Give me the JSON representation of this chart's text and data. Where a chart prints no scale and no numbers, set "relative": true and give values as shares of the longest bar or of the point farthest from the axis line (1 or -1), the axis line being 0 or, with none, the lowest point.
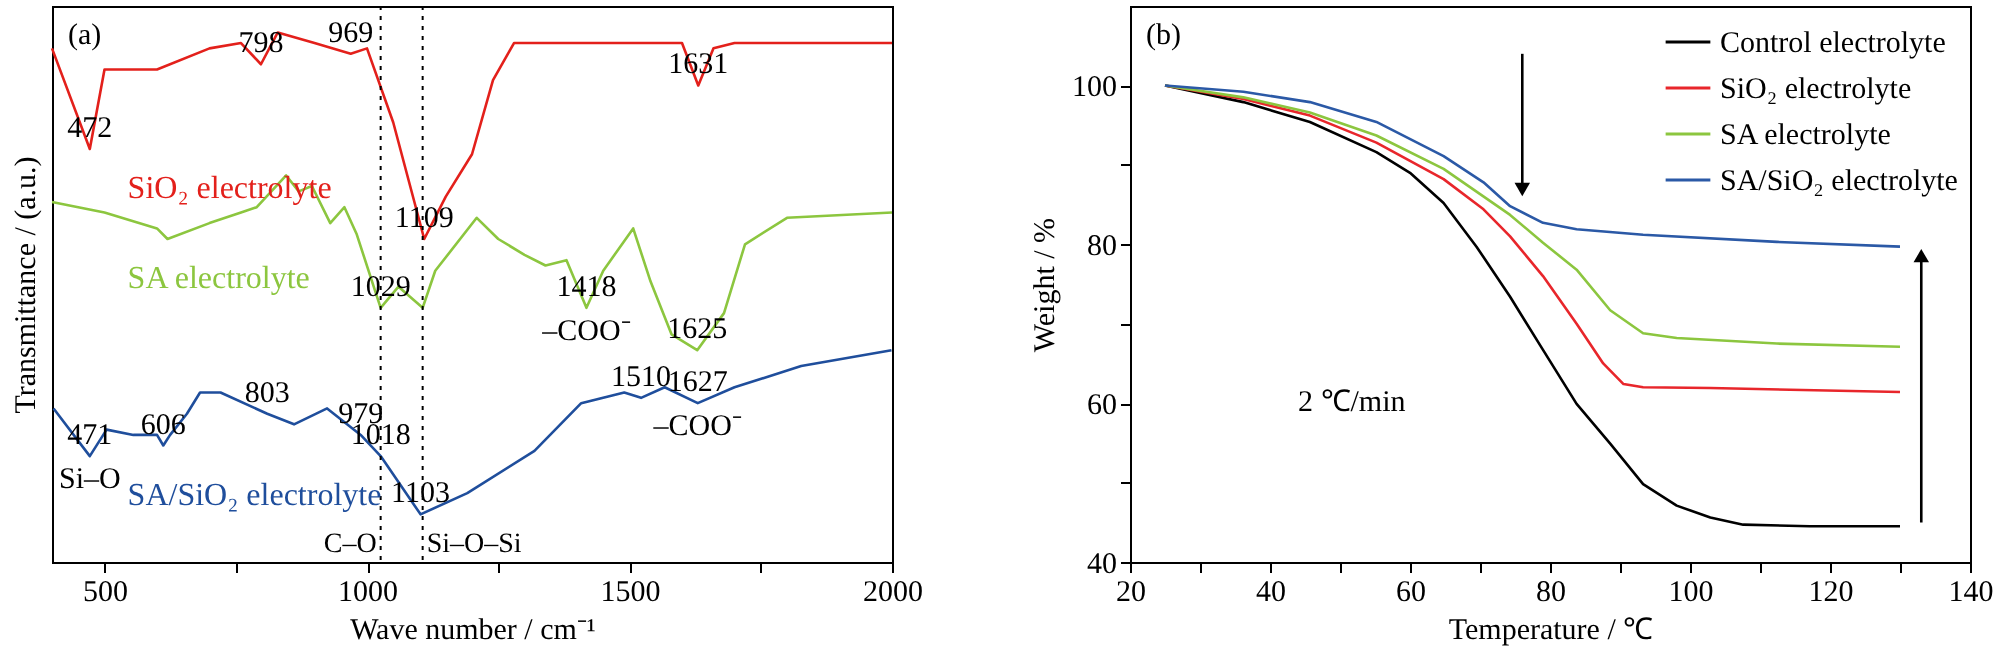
{
  "chart_data": [
    {
      "type": "line",
      "relative": true,
      "xlabel": "Wave number / cm⁻¹",
      "ylabel": "Transmittance / (a.u.)",
      "xlim": [
        400,
        2000
      ],
      "xticks": [
        500,
        {
          "value": 750,
          "label": null
        },
        1000,
        {
          "value": 1250,
          "label": null
        },
        1500,
        {
          "value": 1750,
          "label": null
        },
        2000
      ],
      "legend": false,
      "series": [
        {
          "name": "SiO₂ electrolyte",
          "color": "#e3201b",
          "x": [
            400,
            472,
            500,
            600,
            700,
            760,
            798,
            830,
            900,
            969,
            1000,
            1050,
            1109,
            1150,
            1200,
            1240,
            1280,
            1350,
            1600,
            1631,
            1660,
            1700,
            2000
          ],
          "values": [
            0.97,
            0.78,
            0.93,
            0.93,
            0.97,
            0.98,
            0.94,
            1.0,
            0.98,
            0.96,
            0.97,
            0.83,
            0.61,
            0.69,
            0.77,
            0.91,
            0.98,
            0.98,
            0.98,
            0.9,
            0.97,
            0.98,
            0.98
          ]
        },
        {
          "name": "SA electrolyte",
          "color": "#8cc63f",
          "x": [
            400,
            500,
            600,
            620,
            700,
            760,
            790,
            846,
            870,
            895,
            930,
            957,
            980,
            1026,
            1060,
            1106,
            1130,
            1209,
            1250,
            1300,
            1340,
            1380,
            1418,
            1450,
            1507,
            1540,
            1580,
            1629,
            1680,
            1720,
            1800,
            2000
          ],
          "values": [
            0.68,
            0.66,
            0.63,
            0.61,
            0.64,
            0.66,
            0.67,
            0.73,
            0.7,
            0.71,
            0.64,
            0.67,
            0.62,
            0.48,
            0.52,
            0.48,
            0.55,
            0.65,
            0.61,
            0.58,
            0.56,
            0.57,
            0.48,
            0.55,
            0.63,
            0.53,
            0.43,
            0.4,
            0.47,
            0.6,
            0.65,
            0.66
          ]
        },
        {
          "name": "SA/SiO₂ electrolyte",
          "color": "#1f4e9c",
          "x": [
            403,
            472,
            504,
            555,
            600,
            612,
            625,
            657,
            682,
            721,
            810,
            861,
            924,
            988,
            1026,
            1102,
            1191,
            1319,
            1408,
            1490,
            1522,
            1567,
            1630,
            1700,
            1827,
            1999
          ],
          "values": [
            0.29,
            0.2,
            0.25,
            0.24,
            0.24,
            0.22,
            0.24,
            0.28,
            0.32,
            0.32,
            0.28,
            0.26,
            0.29,
            0.24,
            0.2,
            0.09,
            0.13,
            0.21,
            0.3,
            0.32,
            0.31,
            0.33,
            0.3,
            0.33,
            0.37,
            0.4
          ]
        }
      ],
      "ref_lines": [
        {
          "axis": "x",
          "value": 1026,
          "label": "C–O",
          "line_style": "dotted",
          "color": "#000000"
        },
        {
          "axis": "x",
          "value": 1106,
          "label": "Si–O–Si",
          "line_style": "dotted",
          "color": "#000000"
        }
      ],
      "annotations": [
        "(a)",
        {
          "text": "472",
          "x": 472,
          "y": 0.78
        },
        {
          "text": "798",
          "x": 798,
          "y": 0.94
        },
        {
          "text": "969",
          "x": 969,
          "y": 0.96
        },
        {
          "text": "1109",
          "x": 1109,
          "y": 0.61
        },
        {
          "text": "1631",
          "x": 1631,
          "y": 0.9
        },
        {
          "text": "1029",
          "x": 1026,
          "y": 0.48
        },
        {
          "text": "1418",
          "x": 1418,
          "y": 0.48
        },
        {
          "text": "–COO⁻",
          "x": 1418,
          "y": 0.48
        },
        {
          "text": "1625",
          "x": 1629,
          "y": 0.4
        },
        {
          "text": "471",
          "x": 472,
          "y": 0.2
        },
        {
          "text": "606",
          "x": 612,
          "y": 0.22
        },
        {
          "text": "803",
          "x": 810,
          "y": 0.28
        },
        {
          "text": "979",
          "x": 988,
          "y": 0.24
        },
        {
          "text": "1018",
          "x": 1026,
          "y": 0.2
        },
        {
          "text": "1103",
          "x": 1102,
          "y": 0.09
        },
        {
          "text": "1510",
          "x": 1522,
          "y": 0.31
        },
        {
          "text": "1627",
          "x": 1630,
          "y": 0.3
        },
        {
          "text": "–COO⁻",
          "x": 1630,
          "y": 0.3
        },
        {
          "text": "Si–O",
          "x": 472,
          "y": 0.2
        }
      ]
    },
    {
      "type": "line",
      "xlabel": "Temperature / ℃",
      "ylabel": "Weight / %",
      "xlim": [
        20,
        140
      ],
      "xticks": [
        20,
        {
          "value": 30,
          "label": null
        },
        40,
        {
          "value": 50,
          "label": null
        },
        60,
        {
          "value": 70,
          "label": null
        },
        80,
        {
          "value": 90,
          "label": null
        },
        100,
        {
          "value": 110,
          "label": null
        },
        120,
        {
          "value": 130,
          "label": null
        },
        140
      ],
      "ylim": [
        40,
        110
      ],
      "yticks": [
        40,
        {
          "value": 50,
          "label": null
        },
        60,
        {
          "value": 70,
          "label": null
        },
        80,
        {
          "value": 90,
          "label": null
        },
        100
      ],
      "legend": "top right",
      "series": [
        {
          "name": "Control electrolyte",
          "color": "#000000",
          "x": [
            25,
            36.2,
            45.7,
            55.2,
            60,
            64.8,
            69.5,
            74.3,
            79,
            83.8,
            88.6,
            93.3,
            98.1,
            102.9,
            107.6,
            117.1,
            130
          ],
          "values": [
            100,
            97.9,
            95.4,
            91.6,
            89,
            85.2,
            79.7,
            73.4,
            66.7,
            59.9,
            54.9,
            49.8,
            47.1,
            45.6,
            44.7,
            44.5,
            44.5
          ]
        },
        {
          "name": "SiO₂ electrolyte",
          "color": "#e8262b",
          "x": [
            25,
            36.2,
            45.7,
            55.2,
            64.8,
            70.5,
            74.3,
            79,
            83.8,
            87.6,
            90.5,
            93.3,
            102.9,
            130
          ],
          "values": [
            100,
            98.3,
            96.2,
            92.8,
            88.2,
            84.4,
            81,
            76,
            70,
            65,
            62.4,
            62,
            61.9,
            61.4
          ]
        },
        {
          "name": "SA electrolyte",
          "color": "#8cc63f",
          "x": [
            25,
            36.2,
            45.7,
            55.2,
            64.8,
            74.3,
            79,
            83.8,
            88.6,
            93.3,
            98.1,
            112.4,
            130
          ],
          "values": [
            100,
            98.5,
            96.6,
            93.7,
            89.5,
            83.7,
            80.2,
            76.8,
            71.7,
            68.8,
            68.2,
            67.5,
            67.1
          ]
        },
        {
          "name": "SA/SiO₂ electrolyte",
          "color": "#2b59a6",
          "x": [
            25,
            36.2,
            45.7,
            55.2,
            64.8,
            70.5,
            74.3,
            79,
            83.8,
            93.3,
            112.4,
            130
          ],
          "values": [
            100,
            99.2,
            97.9,
            95.4,
            91.1,
            87.8,
            84.8,
            82.7,
            81.9,
            81.2,
            80.3,
            79.7
          ]
        }
      ],
      "annotations": [
        "(b)",
        "2 ℃/min"
      ]
    }
  ]
}
